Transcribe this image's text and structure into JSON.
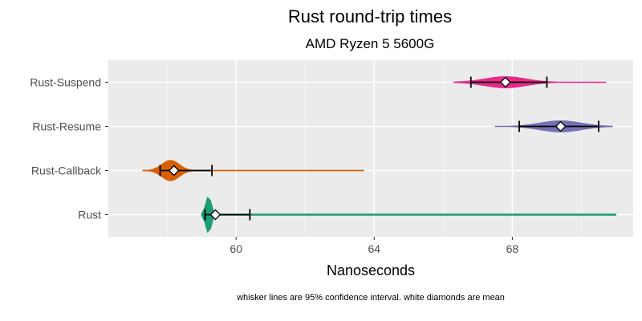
{
  "chart_data": {
    "type": "violin",
    "title": "Rust  round-trip times",
    "subtitle": "AMD Ryzen 5 5600G",
    "xlabel": "Nanoseconds",
    "ylabel": "",
    "caption": "whisker lines are 95% confidence interval. white diamonds are mean",
    "xlim": [
      56.3,
      71.5
    ],
    "x_ticks": [
      60,
      64,
      68
    ],
    "grid": true,
    "legend": "none",
    "categories": [
      "Rust-Suspend",
      "Rust-Resume",
      "Rust-Callback",
      "Rust"
    ],
    "series": [
      {
        "label": "Rust-Suspend",
        "color": "#e7298a",
        "min": 66.3,
        "max": 70.7,
        "mean": 67.8,
        "ci_low": 66.8,
        "ci_high": 69.0,
        "peak": 67.8,
        "width_scale": 0.3,
        "spread": 0.6
      },
      {
        "label": "Rust-Resume",
        "color": "#7570b3",
        "min": 67.5,
        "max": 70.9,
        "mean": 69.4,
        "ci_low": 68.2,
        "ci_high": 70.5,
        "peak": 69.4,
        "width_scale": 0.3,
        "spread": 0.6
      },
      {
        "label": "Rust-Callback",
        "color": "#d95f02",
        "min": 57.3,
        "max": 63.7,
        "mean": 58.2,
        "ci_low": 57.8,
        "ci_high": 59.3,
        "peak": 58.1,
        "width_scale": 0.55,
        "spread": 0.25
      },
      {
        "label": "Rust",
        "color": "#1b9e77",
        "min": 59.0,
        "max": 71.0,
        "mean": 59.4,
        "ci_low": 59.1,
        "ci_high": 60.4,
        "peak": 59.2,
        "width_scale": 1.0,
        "spread": 0.08
      }
    ]
  }
}
